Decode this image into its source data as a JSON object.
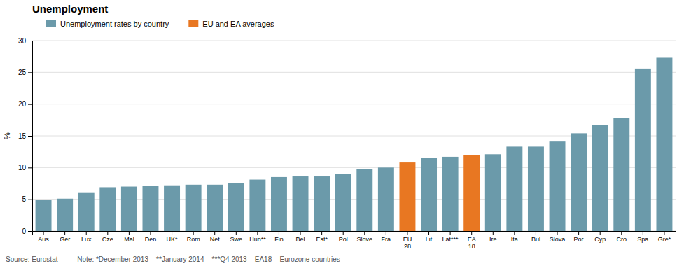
{
  "chart_data": {
    "type": "bar",
    "title": "Unemployment",
    "ylabel": "%",
    "categories": [
      "Aus",
      "Ger",
      "Lux",
      "Cze",
      "Mal",
      "Den",
      "UK*",
      "Rom",
      "Net",
      "Swe",
      "Hun**",
      "Fin",
      "Bel",
      "Est*",
      "Pol",
      "Slove",
      "Fra",
      "EU\n28",
      "Lit",
      "Lat***",
      "EA\n18",
      "Ire",
      "Ita",
      "Bul",
      "Slova",
      "Por",
      "Cyp",
      "Cro",
      "Spa",
      "Gre*"
    ],
    "values": [
      4.9,
      5.1,
      6.1,
      6.9,
      7.0,
      7.1,
      7.2,
      7.3,
      7.3,
      7.5,
      8.1,
      8.5,
      8.6,
      8.6,
      9.0,
      9.8,
      10.0,
      10.8,
      11.5,
      11.7,
      12.0,
      12.1,
      13.3,
      13.3,
      14.1,
      15.4,
      16.7,
      17.8,
      25.6,
      27.3
    ],
    "colors": [
      "#6b9aaa",
      "#6b9aaa",
      "#6b9aaa",
      "#6b9aaa",
      "#6b9aaa",
      "#6b9aaa",
      "#6b9aaa",
      "#6b9aaa",
      "#6b9aaa",
      "#6b9aaa",
      "#6b9aaa",
      "#6b9aaa",
      "#6b9aaa",
      "#6b9aaa",
      "#6b9aaa",
      "#6b9aaa",
      "#6b9aaa",
      "#e87722",
      "#6b9aaa",
      "#6b9aaa",
      "#e87722",
      "#6b9aaa",
      "#6b9aaa",
      "#6b9aaa",
      "#6b9aaa",
      "#6b9aaa",
      "#6b9aaa",
      "#6b9aaa",
      "#6b9aaa",
      "#6b9aaa"
    ],
    "ylim": [
      0,
      30
    ],
    "yticks": [
      0,
      5,
      10,
      15,
      20,
      25,
      30
    ],
    "grid": true,
    "legend": "upper left",
    "legend_entries": [
      {
        "name": "Unemployment rates by country",
        "color": "#6b9aaa"
      },
      {
        "name": "EU and EA averages",
        "color": "#e87722"
      }
    ],
    "footnote": "Source: Eurostat          Note: *December 2013    **January 2014    ***Q4 2013    EA18 = Eurozone countries"
  }
}
